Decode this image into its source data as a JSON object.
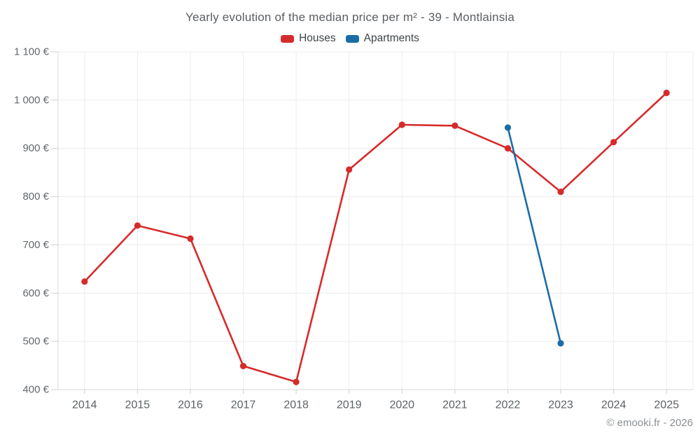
{
  "title": "Yearly evolution of the median price per m² - 39 - Montlainsia",
  "footer": "© emooki.fr - 2026",
  "colors": {
    "houses_red": "#d62b2b",
    "apartments_blue": "#1a6da6",
    "gridline": "#ececec",
    "axis_line": "#d8d8d8",
    "tick_mark": "#cfcfcf",
    "title_text": "#5a5e62",
    "tick_text": "#63686c",
    "legend_text": "#3f4448",
    "footer_text": "#8b9094"
  },
  "legend": {
    "items": [
      {
        "label": "Houses",
        "color": "#d62b2b"
      },
      {
        "label": "Apartments",
        "color": "#1a6da6"
      }
    ]
  },
  "chart_data": {
    "type": "line",
    "title": "Yearly evolution of the median price per m² - 39 - Montlainsia",
    "categories": [
      "2014",
      "2015",
      "2016",
      "2017",
      "2018",
      "2019",
      "2020",
      "2021",
      "2022",
      "2023",
      "2024",
      "2025"
    ],
    "series": [
      {
        "name": "Houses",
        "color": "#d62b2b",
        "values": [
          624,
          740,
          713,
          449,
          416,
          856,
          949,
          947,
          900,
          810,
          913,
          1015
        ]
      },
      {
        "name": "Apartments",
        "color": "#1a6da6",
        "values": [
          null,
          null,
          null,
          null,
          null,
          null,
          null,
          null,
          943,
          496,
          null,
          null
        ]
      }
    ],
    "xlabel": "",
    "ylabel": "",
    "ylim": [
      400,
      1100
    ],
    "ytick_step": 100,
    "ytick_labels": [
      "400 €",
      "500 €",
      "600 €",
      "700 €",
      "800 €",
      "900 €",
      "1 000 €",
      "1 100 €"
    ],
    "ytick_suffix": " €",
    "grid": true,
    "legend_position": "top"
  }
}
